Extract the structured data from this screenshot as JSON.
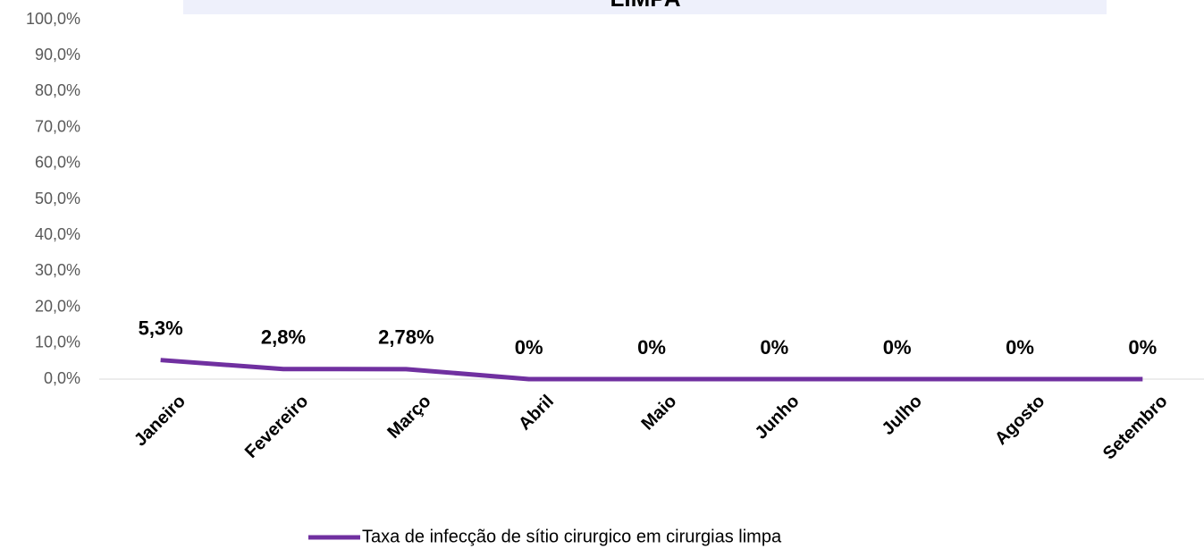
{
  "chart_data": {
    "type": "line",
    "title": "LIMPA",
    "categories": [
      "Janeiro",
      "Fevereiro",
      "Março",
      "Abril",
      "Maio",
      "Junho",
      "Julho",
      "Agosto",
      "Setembro"
    ],
    "series": [
      {
        "name": "Taxa de infecção de sítio cirurgico em cirurgias limpa",
        "color": "#7030a0",
        "values": [
          5.3,
          2.8,
          2.78,
          0,
          0,
          0,
          0,
          0,
          0
        ],
        "value_labels": [
          "5,3%",
          "2,8%",
          "2,78%",
          "0%",
          "0%",
          "0%",
          "0%",
          "0%",
          "0%"
        ]
      }
    ],
    "ylim": [
      0,
      100
    ],
    "yticks": [
      {
        "value": 0,
        "label": "0,0%"
      },
      {
        "value": 10,
        "label": "10,0%"
      },
      {
        "value": 20,
        "label": "20,0%"
      },
      {
        "value": 30,
        "label": "30,0%"
      },
      {
        "value": 40,
        "label": "40,0%"
      },
      {
        "value": 50,
        "label": "50,0%"
      },
      {
        "value": 60,
        "label": "60,0%"
      },
      {
        "value": 70,
        "label": "70,0%"
      },
      {
        "value": 80,
        "label": "80,0%"
      },
      {
        "value": 90,
        "label": "90,0%"
      },
      {
        "value": 100,
        "label": "100,0%"
      }
    ],
    "grid": false,
    "legend": "bottom"
  }
}
